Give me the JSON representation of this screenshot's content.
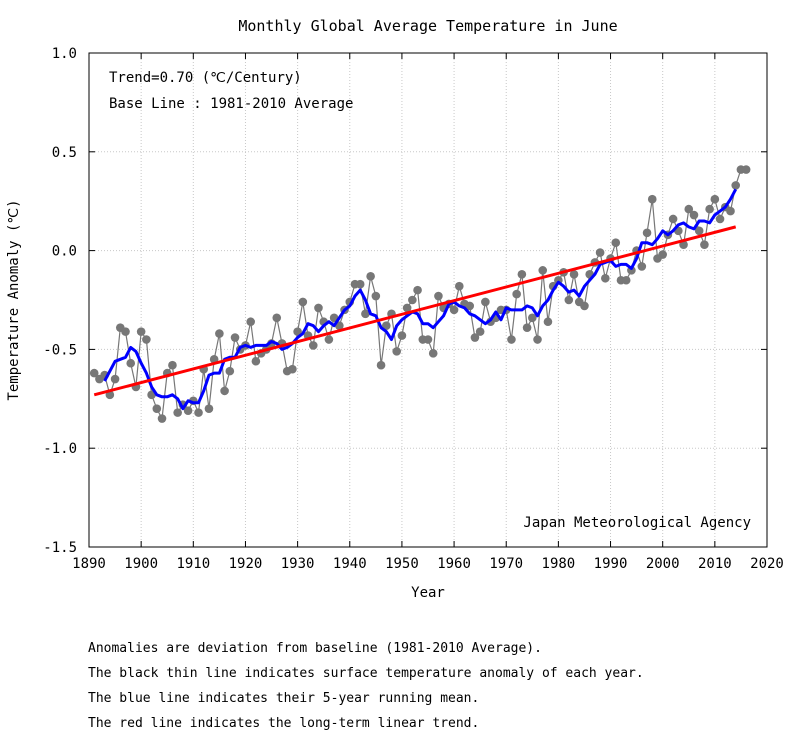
{
  "chart_data": {
    "type": "line",
    "title": "Monthly Global Average Temperature in June",
    "xlabel": "Year",
    "ylabel": "Temperature Anomaly (℃)",
    "xlim": [
      1890,
      2020
    ],
    "ylim": [
      -1.5,
      1.0
    ],
    "xticks": [
      1890,
      1900,
      1910,
      1920,
      1930,
      1940,
      1950,
      1960,
      1970,
      1980,
      1990,
      2000,
      2010,
      2020
    ],
    "xtick_labels": [
      "1890",
      "1900",
      "1910",
      "1920",
      "1930",
      "1940",
      "1950",
      "1960",
      "1970",
      "1980",
      "1990",
      "2000",
      "2010",
      "2020"
    ],
    "yticks": [
      1.0,
      0.5,
      0.0,
      -0.5,
      -1.0,
      -1.5
    ],
    "ytick_labels": [
      "1.0",
      "0.5",
      "0.0",
      "-0.5",
      "-1.0",
      "-1.5"
    ],
    "grid": true,
    "annotations": {
      "trend": "Trend=0.70 (℃/Century)",
      "baseline": "Base Line : 1981-2010 Average",
      "source": "Japan Meteorological Agency"
    },
    "colors": {
      "annual": "#777777",
      "running_mean": "#0000ff",
      "trend": "#ff0000"
    },
    "series": [
      {
        "style": "annual",
        "x": [
          1891,
          1892,
          1893,
          1894,
          1895,
          1896,
          1897,
          1898,
          1899,
          1900,
          1901,
          1902,
          1903,
          1904,
          1905,
          1906,
          1907,
          1908,
          1909,
          1910,
          1911,
          1912,
          1913,
          1914,
          1915,
          1916,
          1917,
          1918,
          1919,
          1920,
          1921,
          1922,
          1923,
          1924,
          1925,
          1926,
          1927,
          1928,
          1929,
          1930,
          1931,
          1932,
          1933,
          1934,
          1935,
          1936,
          1937,
          1938,
          1939,
          1940,
          1941,
          1942,
          1943,
          1944,
          1945,
          1946,
          1947,
          1948,
          1949,
          1950,
          1951,
          1952,
          1953,
          1954,
          1955,
          1956,
          1957,
          1958,
          1959,
          1960,
          1961,
          1962,
          1963,
          1964,
          1965,
          1966,
          1967,
          1968,
          1969,
          1970,
          1971,
          1972,
          1973,
          1974,
          1975,
          1976,
          1977,
          1978,
          1979,
          1980,
          1981,
          1982,
          1983,
          1984,
          1985,
          1986,
          1987,
          1988,
          1989,
          1990,
          1991,
          1992,
          1993,
          1994,
          1995,
          1996,
          1997,
          1998,
          1999,
          2000,
          2001,
          2002,
          2003,
          2004,
          2005,
          2006,
          2007,
          2008,
          2009,
          2010,
          2011,
          2012,
          2013,
          2014,
          2015,
          2016
        ],
        "y": [
          -0.62,
          -0.65,
          -0.63,
          -0.73,
          -0.65,
          -0.39,
          -0.41,
          -0.57,
          -0.69,
          -0.41,
          -0.45,
          -0.73,
          -0.8,
          -0.85,
          -0.62,
          -0.58,
          -0.82,
          -0.78,
          -0.81,
          -0.76,
          -0.82,
          -0.6,
          -0.8,
          -0.55,
          -0.42,
          -0.71,
          -0.61,
          -0.44,
          -0.5,
          -0.48,
          -0.36,
          -0.56,
          -0.52,
          -0.5,
          -0.47,
          -0.34,
          -0.47,
          -0.61,
          -0.6,
          -0.41,
          -0.26,
          -0.43,
          -0.48,
          -0.29,
          -0.36,
          -0.45,
          -0.34,
          -0.38,
          -0.3,
          -0.26,
          -0.17,
          -0.17,
          -0.32,
          -0.13,
          -0.23,
          -0.58,
          -0.38,
          -0.32,
          -0.51,
          -0.43,
          -0.29,
          -0.25,
          -0.2,
          -0.45,
          -0.45,
          -0.52,
          -0.23,
          -0.29,
          -0.27,
          -0.3,
          -0.18,
          -0.27,
          -0.28,
          -0.44,
          -0.41,
          -0.26,
          -0.36,
          -0.34,
          -0.3,
          -0.3,
          -0.45,
          -0.22,
          -0.12,
          -0.39,
          -0.34,
          -0.45,
          -0.1,
          -0.36,
          -0.18,
          -0.15,
          -0.11,
          -0.25,
          -0.12,
          -0.26,
          -0.28,
          -0.12,
          -0.06,
          -0.01,
          -0.14,
          -0.04,
          0.04,
          -0.15,
          -0.15,
          -0.1,
          0.0,
          -0.08,
          0.09,
          0.26,
          -0.04,
          -0.02,
          0.08,
          0.16,
          0.1,
          0.03,
          0.21,
          0.18,
          0.1,
          0.03,
          0.21,
          0.26,
          0.16,
          0.22,
          0.2,
          0.33,
          0.41,
          0.41
        ]
      },
      {
        "style": "running_mean",
        "x": [
          1893,
          1894,
          1895,
          1896,
          1897,
          1898,
          1899,
          1900,
          1901,
          1902,
          1903,
          1904,
          1905,
          1906,
          1907,
          1908,
          1909,
          1910,
          1911,
          1912,
          1913,
          1914,
          1915,
          1916,
          1917,
          1918,
          1919,
          1920,
          1921,
          1922,
          1923,
          1924,
          1925,
          1926,
          1927,
          1928,
          1929,
          1930,
          1931,
          1932,
          1933,
          1934,
          1935,
          1936,
          1937,
          1938,
          1939,
          1940,
          1941,
          1942,
          1943,
          1944,
          1945,
          1946,
          1947,
          1948,
          1949,
          1950,
          1951,
          1952,
          1953,
          1954,
          1955,
          1956,
          1957,
          1958,
          1959,
          1960,
          1961,
          1962,
          1963,
          1964,
          1965,
          1966,
          1967,
          1968,
          1969,
          1970,
          1971,
          1972,
          1973,
          1974,
          1975,
          1976,
          1977,
          1978,
          1979,
          1980,
          1981,
          1982,
          1983,
          1984,
          1985,
          1986,
          1987,
          1988,
          1989,
          1990,
          1991,
          1992,
          1993,
          1994,
          1995,
          1996,
          1997,
          1998,
          1999,
          2000,
          2001,
          2002,
          2003,
          2004,
          2005,
          2006,
          2007,
          2008,
          2009,
          2010,
          2011,
          2012,
          2013,
          2014
        ],
        "y": [
          -0.66,
          -0.61,
          -0.56,
          -0.55,
          -0.54,
          -0.49,
          -0.51,
          -0.57,
          -0.62,
          -0.69,
          -0.73,
          -0.74,
          -0.74,
          -0.73,
          -0.75,
          -0.8,
          -0.76,
          -0.77,
          -0.77,
          -0.71,
          -0.63,
          -0.62,
          -0.62,
          -0.55,
          -0.54,
          -0.54,
          -0.49,
          -0.48,
          -0.49,
          -0.48,
          -0.48,
          -0.48,
          -0.46,
          -0.47,
          -0.5,
          -0.49,
          -0.47,
          -0.44,
          -0.42,
          -0.37,
          -0.38,
          -0.41,
          -0.38,
          -0.36,
          -0.38,
          -0.34,
          -0.3,
          -0.28,
          -0.23,
          -0.2,
          -0.25,
          -0.32,
          -0.33,
          -0.39,
          -0.41,
          -0.45,
          -0.38,
          -0.35,
          -0.33,
          -0.31,
          -0.32,
          -0.37,
          -0.37,
          -0.39,
          -0.36,
          -0.33,
          -0.27,
          -0.26,
          -0.28,
          -0.29,
          -0.32,
          -0.33,
          -0.35,
          -0.37,
          -0.35,
          -0.31,
          -0.35,
          -0.29,
          -0.3,
          -0.3,
          -0.3,
          -0.28,
          -0.29,
          -0.33,
          -0.28,
          -0.25,
          -0.2,
          -0.16,
          -0.18,
          -0.21,
          -0.2,
          -0.23,
          -0.18,
          -0.15,
          -0.12,
          -0.07,
          -0.06,
          -0.05,
          -0.08,
          -0.07,
          -0.07,
          -0.09,
          -0.04,
          0.04,
          0.04,
          0.03,
          0.06,
          0.1,
          0.08,
          0.1,
          0.13,
          0.14,
          0.12,
          0.11,
          0.15,
          0.15,
          0.14,
          0.18,
          0.2,
          0.22,
          0.26,
          0.31
        ]
      },
      {
        "style": "trend",
        "x": [
          1891,
          2014
        ],
        "y": [
          -0.73,
          0.12
        ]
      }
    ]
  },
  "notes": [
    "Anomalies are deviation from baseline (1981-2010 Average).",
    "The black thin line indicates surface temperature anomaly of each year.",
    "The blue line indicates their 5-year running mean.",
    "The red line indicates the long-term linear trend."
  ]
}
